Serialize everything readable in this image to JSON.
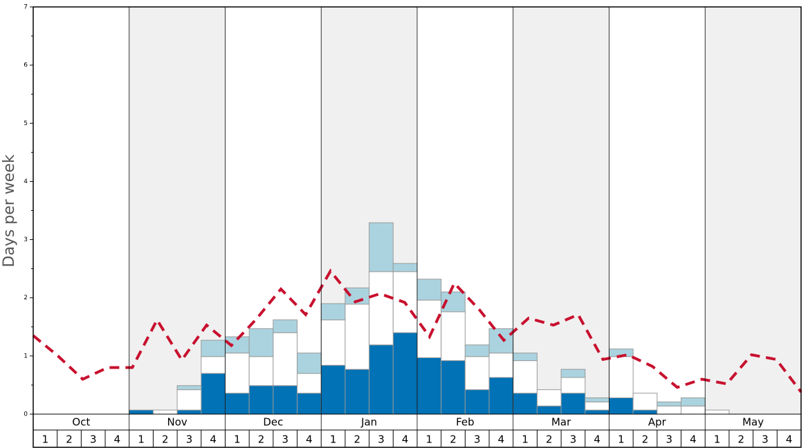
{
  "chart_data": {
    "type": "stacked-bar-line",
    "y_label": "Days per week",
    "months": [
      "Oct",
      "Nov",
      "Dec",
      "Jan",
      "Feb",
      "Mar",
      "Apr",
      "May"
    ],
    "weeks": [
      "1",
      "2",
      "3",
      "4"
    ],
    "ylim": [
      0,
      7
    ],
    "yticks": [
      0,
      1,
      2,
      3,
      4,
      5,
      6,
      7
    ],
    "shade_color": "#f0f0f0",
    "series": [
      {
        "color": "#0072b5",
        "values": [
          0,
          0,
          0,
          0,
          0.07,
          0,
          0.07,
          0.7,
          0.36,
          0.49,
          0.49,
          0.36,
          0.84,
          0.77,
          1.19,
          1.4,
          0.97,
          0.92,
          0.42,
          0.63,
          0.36,
          0.14,
          0.36,
          0.07,
          0.28,
          0.07,
          0,
          0,
          0,
          0,
          0,
          0
        ]
      },
      {
        "color": "#ffffff",
        "values": [
          0,
          0,
          0,
          0,
          0,
          0.07,
          0.35,
          0.29,
          0.69,
          0.5,
          0.91,
          0.34,
          0.78,
          1.12,
          1.26,
          1.05,
          0.99,
          0.84,
          0.57,
          0.42,
          0.56,
          0.28,
          0.27,
          0.14,
          0.71,
          0.29,
          0.14,
          0.14,
          0.07,
          0,
          0,
          0
        ]
      },
      {
        "color": "#aad3df",
        "values": [
          0,
          0,
          0,
          0,
          0,
          0,
          0.07,
          0.28,
          0.28,
          0.48,
          0.22,
          0.35,
          0.28,
          0.28,
          0.84,
          0.14,
          0.36,
          0.34,
          0.2,
          0.42,
          0.13,
          0,
          0.14,
          0.07,
          0.13,
          0,
          0.07,
          0.14,
          0,
          0,
          0,
          0
        ]
      },
      {
        "type": "line",
        "color": "#c8102e",
        "values": [
          1.35,
          1.0,
          0.6,
          0.8,
          0.8,
          1.62,
          0.93,
          1.53,
          1.18,
          1.63,
          2.15,
          1.71,
          2.46,
          1.93,
          2.07,
          1.92,
          1.33,
          2.25,
          1.8,
          1.27,
          1.65,
          1.53,
          1.71,
          0.94,
          1.02,
          0.82,
          0.46,
          0.6,
          0.52,
          1.02,
          0.94,
          0.38
        ]
      }
    ]
  }
}
